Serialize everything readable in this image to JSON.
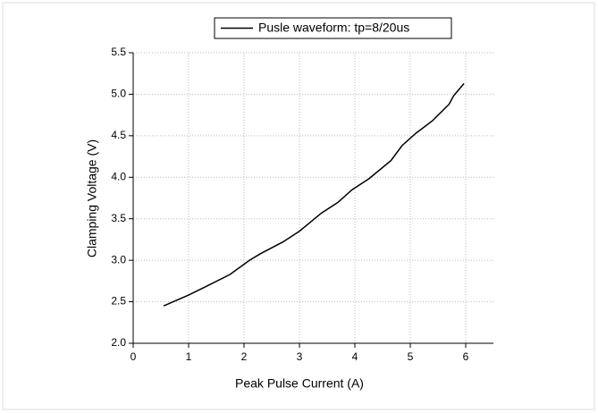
{
  "chart_data": {
    "type": "line",
    "series": [
      {
        "name": "Pusle waveform: tp=8/20us",
        "color": "#000000",
        "x": [
          0.55,
          1.0,
          1.3,
          1.75,
          2.1,
          2.3,
          2.7,
          3.0,
          3.4,
          3.7,
          3.95,
          4.25,
          4.65,
          4.85,
          5.1,
          5.4,
          5.7,
          5.78,
          5.97
        ],
        "values": [
          2.45,
          2.58,
          2.68,
          2.83,
          3.0,
          3.08,
          3.22,
          3.35,
          3.57,
          3.7,
          3.85,
          3.98,
          4.2,
          4.38,
          4.53,
          4.68,
          4.88,
          4.98,
          5.13
        ]
      }
    ],
    "x_label": "Peak Pulse Current (A)",
    "y_label": "Clamping Voltage (V)",
    "xlim": [
      0,
      6.5
    ],
    "xticks": [
      0,
      1,
      2,
      3,
      4,
      5,
      6
    ],
    "ylim": [
      2,
      5.5
    ],
    "yticks": [
      {
        "value": 2,
        "label": "2.0"
      },
      2.5,
      {
        "value": 3,
        "label": "3.0"
      },
      3.5,
      {
        "value": 4,
        "label": "4.0"
      },
      4.5,
      {
        "value": 5,
        "label": "5.0"
      },
      5.5
    ],
    "grid": true,
    "legend": "top"
  }
}
